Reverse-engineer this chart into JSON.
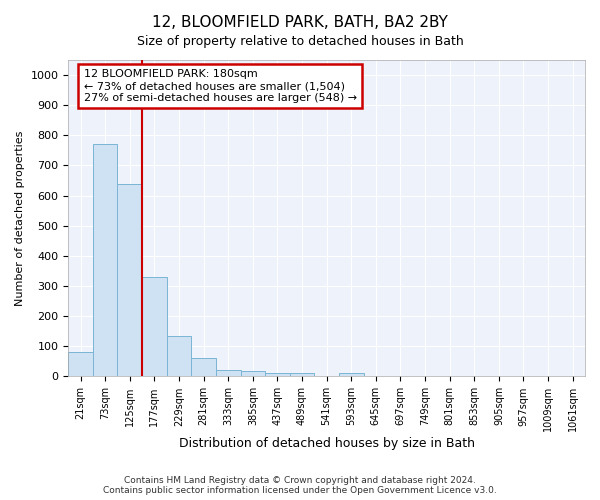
{
  "title": "12, BLOOMFIELD PARK, BATH, BA2 2BY",
  "subtitle": "Size of property relative to detached houses in Bath",
  "xlabel": "Distribution of detached houses by size in Bath",
  "ylabel": "Number of detached properties",
  "bar_color": "#cfe2f3",
  "bar_edge_color": "#7ab4d4",
  "vline_color": "#cc0000",
  "vline_x": 2.5,
  "categories": [
    "21sqm",
    "73sqm",
    "125sqm",
    "177sqm",
    "229sqm",
    "281sqm",
    "333sqm",
    "385sqm",
    "437sqm",
    "489sqm",
    "541sqm",
    "593sqm",
    "645sqm",
    "697sqm",
    "749sqm",
    "801sqm",
    "853sqm",
    "905sqm",
    "957sqm",
    "1009sqm",
    "1061sqm"
  ],
  "values": [
    80,
    770,
    640,
    330,
    135,
    60,
    22,
    17,
    12,
    10,
    0,
    10,
    0,
    0,
    0,
    0,
    0,
    0,
    0,
    0,
    0
  ],
  "ylim": [
    0,
    1050
  ],
  "yticks": [
    0,
    100,
    200,
    300,
    400,
    500,
    600,
    700,
    800,
    900,
    1000
  ],
  "annotation_title": "12 BLOOMFIELD PARK: 180sqm",
  "annotation_line1": "← 73% of detached houses are smaller (1,504)",
  "annotation_line2": "27% of semi-detached houses are larger (548) →",
  "footer1": "Contains HM Land Registry data © Crown copyright and database right 2024.",
  "footer2": "Contains public sector information licensed under the Open Government Licence v3.0.",
  "background_color": "#eef2fa",
  "grid_color": "#ffffff"
}
